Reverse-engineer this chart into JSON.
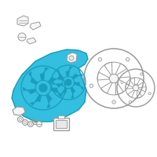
{
  "bg_color": "#ffffff",
  "shroud_color": "#33bfdf",
  "shroud_outline": "#1a9ab8",
  "part_outline": "#999999",
  "part_fill": "#f5f5f5",
  "highlight_fill": "#e8e8e8",
  "figsize": [
    2.0,
    2.0
  ],
  "dpi": 100
}
